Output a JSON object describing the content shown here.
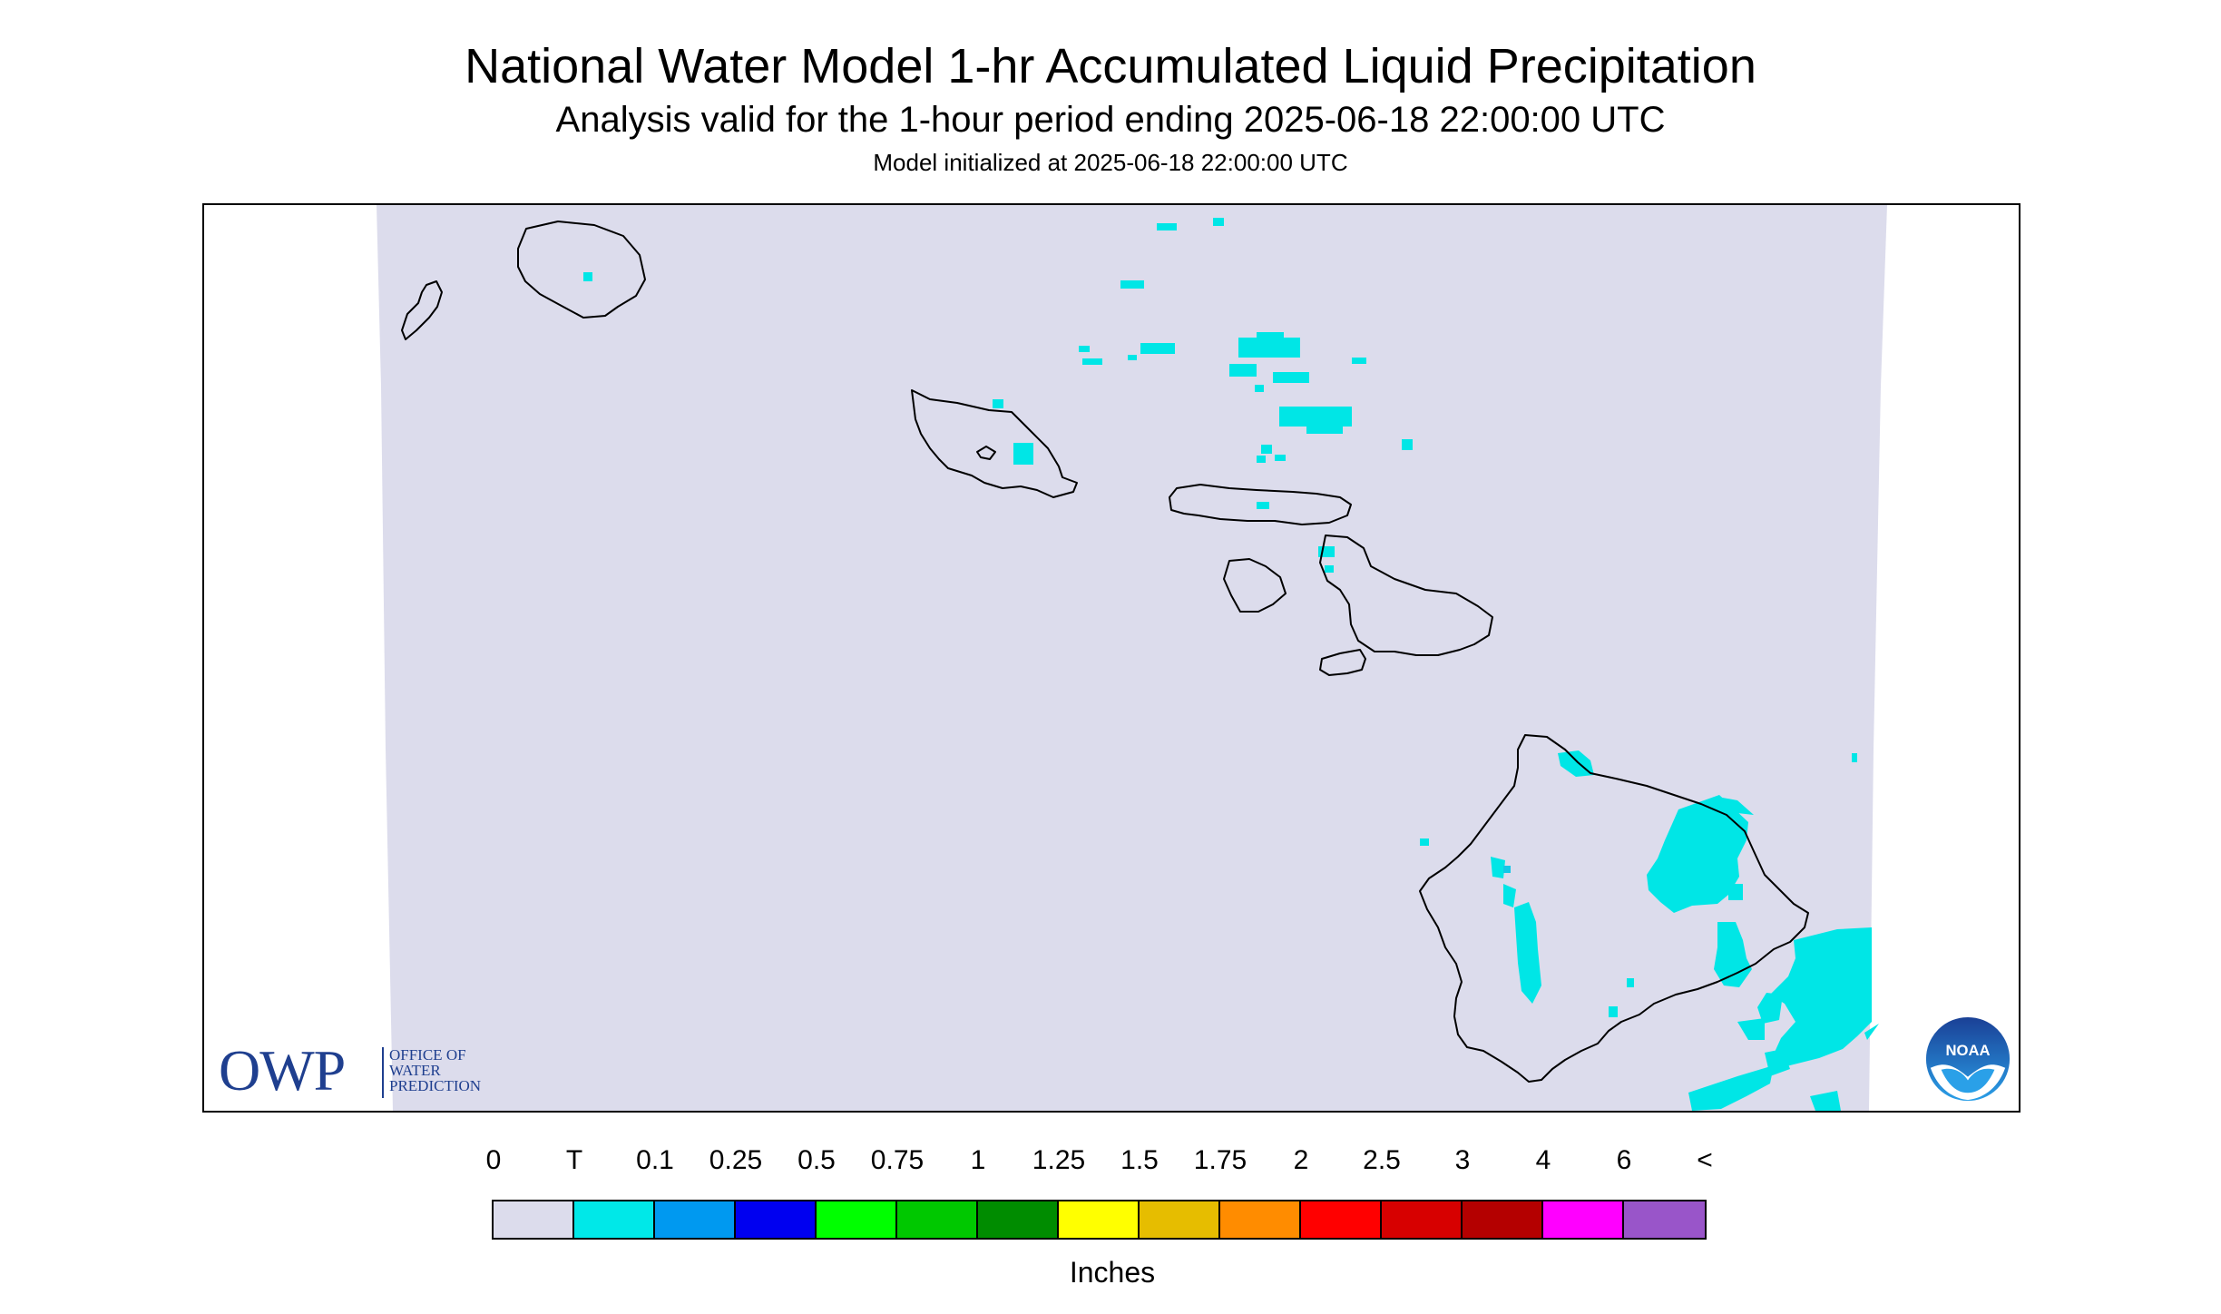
{
  "title": "National Water Model 1-hr Accumulated Liquid Precipitation",
  "subtitle": "Analysis valid for the 1-hour period ending 2025-06-18 22:00:00 UTC",
  "init_text": "Model initialized at 2025-06-18 22:00:00 UTC",
  "legend": {
    "units": "Inches",
    "labels": [
      "0",
      "T",
      "0.1",
      "0.25",
      "0.5",
      "0.75",
      "1",
      "1.25",
      "1.5",
      "1.75",
      "2",
      "2.5",
      "3",
      "4",
      "6",
      "<"
    ],
    "colors": [
      "#dcdcec",
      "#00e8e8",
      "#0099f0",
      "#0000f0",
      "#00ff00",
      "#00c800",
      "#008c00",
      "#ffff00",
      "#e6bd00",
      "#ff8c00",
      "#ff0000",
      "#d70000",
      "#b40000",
      "#ff00ff",
      "#9955c9"
    ]
  },
  "map": {
    "background_color": "#dcdcec",
    "precip_color": "#00e6e6",
    "precip_heavier_color": "#14c8e6",
    "coast_color": "#000000",
    "islands": [
      "Niihau",
      "Kauai",
      "Oahu",
      "Molokai",
      "Lanai",
      "Maui",
      "Kahoolawe",
      "Hawaii"
    ]
  },
  "logos": {
    "owp_big": "OWP",
    "owp_lines": [
      "OFFICE OF",
      "WATER",
      "PREDICTION"
    ],
    "noaa_text": "NOAA",
    "owp_color": "#1f3f8f",
    "noaa_dark": "#1a3f95",
    "noaa_light": "#2aa0e8"
  }
}
